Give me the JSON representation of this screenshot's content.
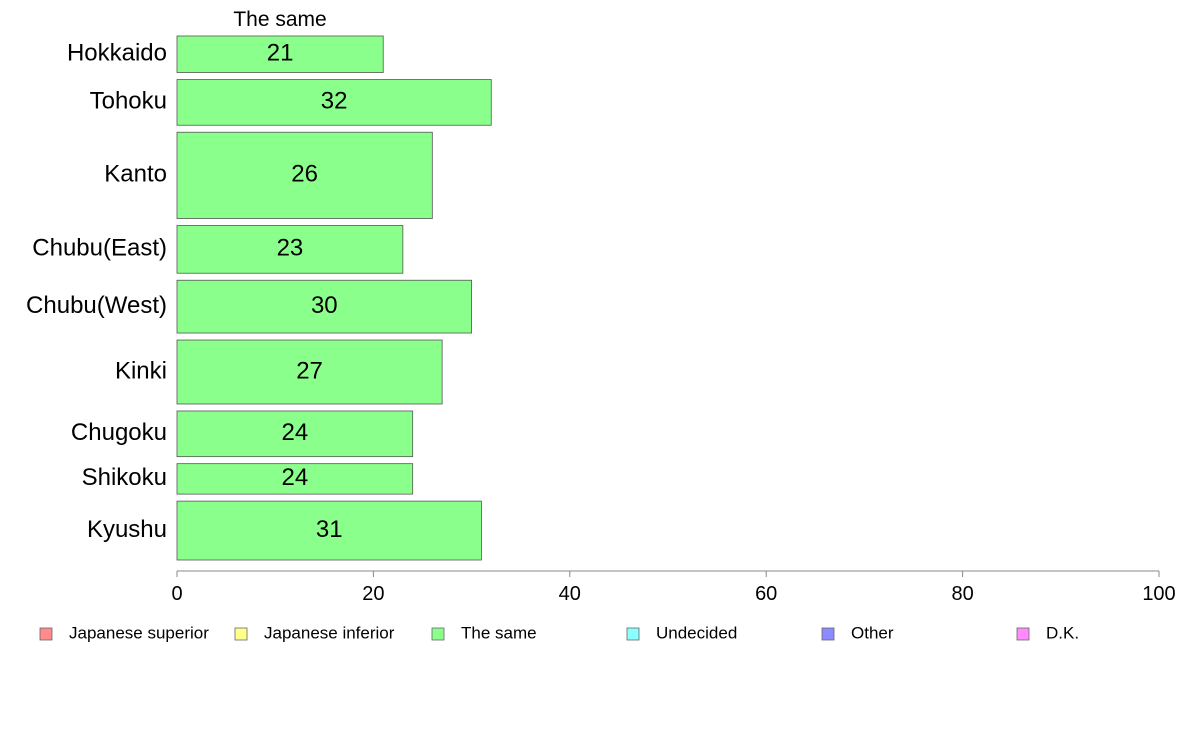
{
  "chart_data": {
    "type": "bar",
    "orientation": "horizontal",
    "title": "The same",
    "categories": [
      "Hokkaido",
      "Tohoku",
      "Kanto",
      "Chubu(East)",
      "Chubu(West)",
      "Kinki",
      "Chugoku",
      "Shikoku",
      "Kyushu"
    ],
    "values": [
      21,
      32,
      26,
      23,
      30,
      27,
      24,
      24,
      31
    ],
    "relative_bar_heights": [
      36,
      45,
      85,
      47,
      52,
      63,
      45,
      30,
      58
    ],
    "xlim": [
      0,
      100
    ],
    "xticks": [
      0,
      20,
      40,
      60,
      80,
      100
    ],
    "grid": false,
    "bar_color": "#8bff8b",
    "bar_edge_color": "#555555",
    "legend_position": "bottom",
    "legend": [
      {
        "label": "Japanese superior",
        "color": "#ff8b8b"
      },
      {
        "label": "Japanese inferior",
        "color": "#ffff8b"
      },
      {
        "label": "The same",
        "color": "#8bff8b"
      },
      {
        "label": "Undecided",
        "color": "#8bffff"
      },
      {
        "label": "Other",
        "color": "#8b8bff"
      },
      {
        "label": "D.K.",
        "color": "#ff8bff"
      }
    ]
  }
}
